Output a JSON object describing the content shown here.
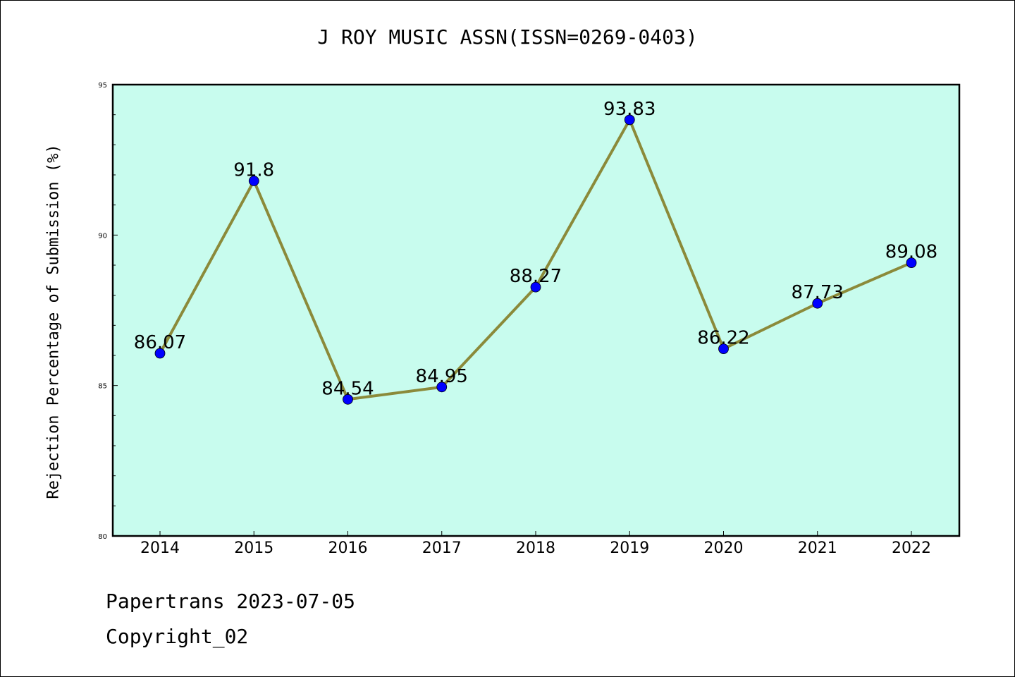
{
  "colors": {
    "plot_background": "#c8fcee",
    "line": "#8b8a3a",
    "marker": "#0000ff"
  },
  "chart_data": {
    "type": "line",
    "title": "J ROY MUSIC ASSN(ISSN=0269-0403)",
    "xlabel": "",
    "ylabel": "Rejection Percentage of Submission (%)",
    "categories": [
      "2014",
      "2015",
      "2016",
      "2017",
      "2018",
      "2019",
      "2020",
      "2021",
      "2022"
    ],
    "values": [
      86.07,
      91.8,
      84.54,
      84.95,
      88.27,
      93.83,
      86.22,
      87.73,
      89.08
    ],
    "data_labels": [
      "86.07",
      "91.8",
      "84.54",
      "84.95",
      "88.27",
      "93.83",
      "86.22",
      "87.73",
      "89.08"
    ],
    "ylim": [
      80,
      95
    ],
    "yticks": [
      80,
      85,
      90,
      95
    ],
    "grid": false,
    "legend": "none"
  },
  "footer": {
    "line1": "Papertrans 2023-07-05",
    "line2": "Copyright_02"
  }
}
